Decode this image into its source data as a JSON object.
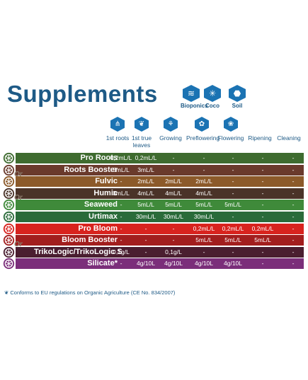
{
  "title": "Supplements",
  "media": [
    {
      "label": "Bioponics",
      "icon": "bioponics-icon"
    },
    {
      "label": "Coco",
      "icon": "coco-palm-icon"
    },
    {
      "label": "Soil",
      "icon": "soil-icon"
    }
  ],
  "stages": [
    {
      "label": "1st roots",
      "icon": "roots-icon"
    },
    {
      "label": "1st true leaves",
      "icon": "leaf-icon"
    },
    {
      "label": "Growing",
      "icon": "sprout-icon"
    },
    {
      "label": "Preflowering",
      "icon": "bud-icon"
    },
    {
      "label": "Flowering",
      "icon": "flower-icon"
    },
    {
      "label": "Ripening",
      "icon": ""
    },
    {
      "label": "Cleaning",
      "icon": ""
    }
  ],
  "rows": [
    {
      "name": "Pro Roots",
      "color": "#3e6b2f",
      "or": false,
      "values": [
        "0,2mL/L",
        "0,2mL/L",
        "-",
        "-",
        "-",
        "-",
        "-"
      ]
    },
    {
      "name": "Roots Booster",
      "color": "#6a3a2c",
      "or": true,
      "values": [
        "5mL/L",
        "3mL/L",
        "-",
        "-",
        "-",
        "-",
        "-"
      ]
    },
    {
      "name": "Fulvic",
      "color": "#8c5a2a",
      "or": false,
      "values": [
        "-",
        "2mL/L",
        "2mL/L",
        "2mL/L",
        "-",
        "-",
        "-"
      ]
    },
    {
      "name": "Humic",
      "color": "#4a3328",
      "or": true,
      "values": [
        "3mL/L",
        "4mL/L",
        "4mL/L",
        "4mL/L",
        "-",
        "-",
        "-"
      ]
    },
    {
      "name": "Seaweed",
      "color": "#3f8a3a",
      "or": false,
      "values": [
        "-",
        "5mL/L",
        "5mL/L",
        "5mL/L",
        "5mL/L",
        "-",
        "-"
      ]
    },
    {
      "name": "Urtimax",
      "color": "#2a6b3a",
      "or": false,
      "values": [
        "-",
        "30mL/L",
        "30mL/L",
        "30mL/L",
        "-",
        "-",
        "-"
      ]
    },
    {
      "name": "Pro Bloom",
      "color": "#d8231e",
      "or": false,
      "values": [
        "-",
        "-",
        "-",
        "0,2mL/L",
        "0,2mL/L",
        "0,2mL/L",
        "-"
      ]
    },
    {
      "name": "Bloom Booster",
      "color": "#a21e1e",
      "or": true,
      "values": [
        "-",
        "-",
        "-",
        "5mL/L",
        "5mL/L",
        "5mL/L",
        "-"
      ]
    },
    {
      "name": "TrikoLogic/TrikoLogic S",
      "color": "#4a1e30",
      "or": false,
      "values": [
        "0,1g/L",
        "-",
        "0,1g/L",
        "-",
        "-",
        "-",
        "-"
      ]
    },
    {
      "name": "Silicate*",
      "color": "#7b2e7a",
      "or": false,
      "values": [
        "-",
        "4g/10L",
        "4g/10L",
        "4g/10L",
        "4g/10L",
        "-",
        "-"
      ]
    }
  ],
  "or_label": "Or",
  "footnote": "Conforms to EU regulations on Organic Agriculture (CE No. 834/2007)"
}
